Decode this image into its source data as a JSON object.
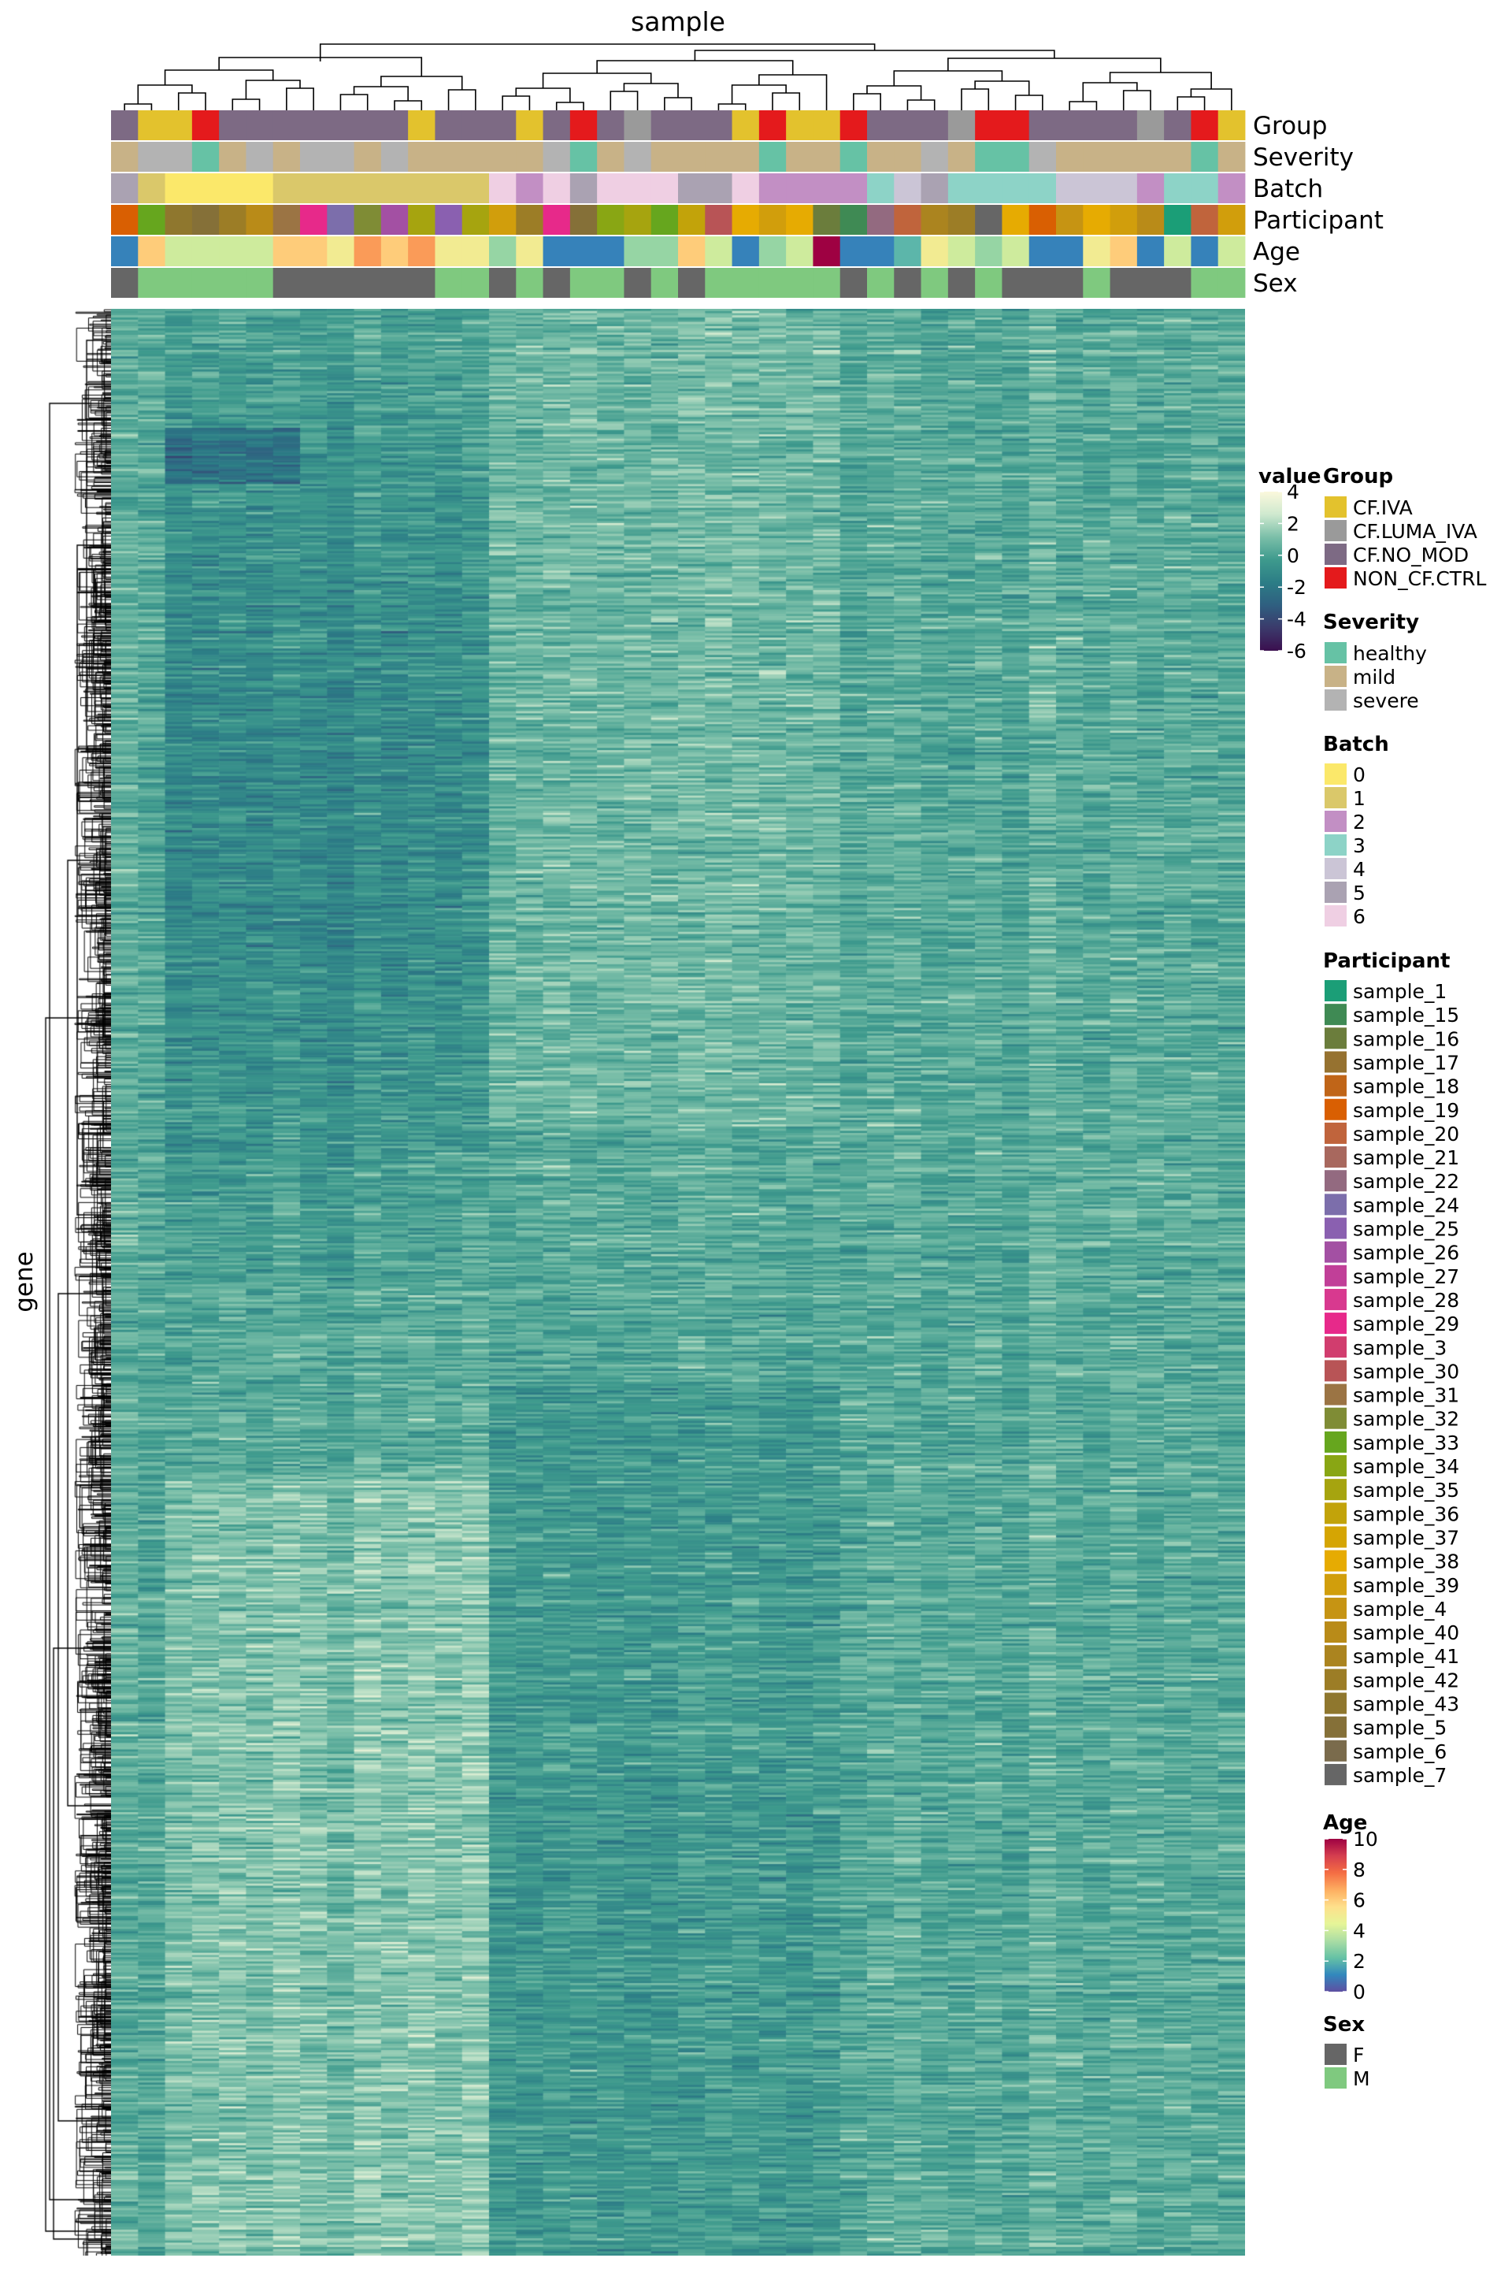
{
  "chart_data": {
    "type": "heatmap",
    "title": "sample",
    "xlabel": "sample",
    "ylabel": "gene",
    "n_samples": 42,
    "value_legend": {
      "title": "value",
      "ticks": [
        4,
        2,
        0,
        -2,
        -4,
        -6
      ],
      "range": [
        -6,
        4
      ]
    },
    "colors": {
      "heat_ramp": [
        "#3b0f4f",
        "#3b3a6b",
        "#2f5f80",
        "#2c7d86",
        "#3e9a8d",
        "#7bbfa9",
        "#cfe9cf",
        "#fbf8dc"
      ],
      "age_ramp": [
        "#5e4fa2",
        "#3288bd",
        "#66c2a5",
        "#abdda4",
        "#e6f598",
        "#fee08b",
        "#fdae61",
        "#f46d43",
        "#d53e4f",
        "#9e0142"
      ]
    },
    "annotation_tracks": [
      "Group",
      "Severity",
      "Batch",
      "Participant",
      "Age",
      "Sex"
    ],
    "legends": {
      "group": {
        "title": "Group",
        "items": [
          {
            "label": "CF.IVA",
            "color": "#e3c22d"
          },
          {
            "label": "CF.LUMA_IVA",
            "color": "#9a9a9a"
          },
          {
            "label": "CF.NO_MOD",
            "color": "#7d6a84"
          },
          {
            "label": "NON_CF.CTRL",
            "color": "#e41a1c"
          }
        ]
      },
      "severity": {
        "title": "Severity",
        "items": [
          {
            "label": "healthy",
            "color": "#66c2a5"
          },
          {
            "label": "mild",
            "color": "#c8b287"
          },
          {
            "label": "severe",
            "color": "#b3b3b3"
          }
        ]
      },
      "batch": {
        "title": "Batch",
        "items": [
          {
            "label": "0",
            "color": "#fbe86a"
          },
          {
            "label": "1",
            "color": "#dac86a"
          },
          {
            "label": "2",
            "color": "#c28fc4"
          },
          {
            "label": "3",
            "color": "#8dd3c7"
          },
          {
            "label": "4",
            "color": "#cbc5d6"
          },
          {
            "label": "5",
            "color": "#aaa2b2"
          },
          {
            "label": "6",
            "color": "#efcfe3"
          }
        ]
      },
      "participant": {
        "title": "Participant",
        "items": [
          {
            "label": "sample_1",
            "color": "#1b9e77"
          },
          {
            "label": "sample_15",
            "color": "#3f8a54"
          },
          {
            "label": "sample_16",
            "color": "#6b7d3c"
          },
          {
            "label": "sample_17",
            "color": "#967230"
          },
          {
            "label": "sample_18",
            "color": "#c06518"
          },
          {
            "label": "sample_19",
            "color": "#d95f02"
          },
          {
            "label": "sample_20",
            "color": "#c0643c"
          },
          {
            "label": "sample_21",
            "color": "#a8685e"
          },
          {
            "label": "sample_22",
            "color": "#936a80"
          },
          {
            "label": "sample_24",
            "color": "#7c6eab"
          },
          {
            "label": "sample_25",
            "color": "#8a60b0"
          },
          {
            "label": "sample_26",
            "color": "#a350a3"
          },
          {
            "label": "sample_27",
            "color": "#c13f98"
          },
          {
            "label": "sample_28",
            "color": "#d8398f"
          },
          {
            "label": "sample_29",
            "color": "#e7298a"
          },
          {
            "label": "sample_3",
            "color": "#d13d6e"
          },
          {
            "label": "sample_30",
            "color": "#b85456"
          },
          {
            "label": "sample_31",
            "color": "#9b7444"
          },
          {
            "label": "sample_32",
            "color": "#7f8c35"
          },
          {
            "label": "sample_33",
            "color": "#66a61e"
          },
          {
            "label": "sample_34",
            "color": "#89a614"
          },
          {
            "label": "sample_35",
            "color": "#a6a40f"
          },
          {
            "label": "sample_36",
            "color": "#c2a30a"
          },
          {
            "label": "sample_37",
            "color": "#d5a503"
          },
          {
            "label": "sample_38",
            "color": "#e6ab02"
          },
          {
            "label": "sample_39",
            "color": "#d19e0c"
          },
          {
            "label": "sample_4",
            "color": "#c69413"
          },
          {
            "label": "sample_40",
            "color": "#b98b18"
          },
          {
            "label": "sample_41",
            "color": "#ab841f"
          },
          {
            "label": "sample_42",
            "color": "#9c7d26"
          },
          {
            "label": "sample_43",
            "color": "#8f772e"
          },
          {
            "label": "sample_5",
            "color": "#857038"
          },
          {
            "label": "sample_6",
            "color": "#7a6b4c"
          },
          {
            "label": "sample_7",
            "color": "#666666"
          }
        ]
      },
      "age": {
        "title": "Age",
        "ticks": [
          10,
          8,
          6,
          4,
          2,
          0
        ],
        "range": [
          0,
          10
        ]
      },
      "sex": {
        "title": "Sex",
        "items": [
          {
            "label": "F",
            "color": "#666666"
          },
          {
            "label": "M",
            "color": "#7fc97f"
          }
        ]
      }
    }
  }
}
